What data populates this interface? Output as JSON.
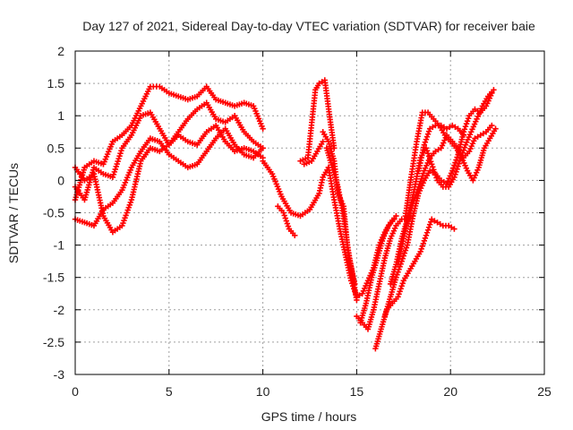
{
  "chart_data": {
    "type": "scatter",
    "title": "Day 127 of 2021, Sidereal Day-to-day VTEC variation (SDTVAR) for receiver baie",
    "xlabel": "GPS time / hours",
    "ylabel": "SDTVAR / TECUs",
    "xlim": [
      0,
      25
    ],
    "ylim": [
      -3,
      2
    ],
    "xticks": [
      0,
      5,
      10,
      15,
      20,
      25
    ],
    "yticks": [
      -3,
      -2.5,
      -2,
      -1.5,
      -1,
      -0.5,
      0,
      0.5,
      1,
      1.5,
      2
    ],
    "xtick_labels": [
      "0",
      "5",
      "10",
      "15",
      "20",
      "25"
    ],
    "ytick_labels": [
      "-3",
      "-2.5",
      "-2",
      "-1.5",
      "-1",
      "-0.5",
      "0",
      "0.5",
      "1",
      "1.5",
      "2"
    ],
    "grid": true,
    "marker": "plus",
    "color": "#ff0000",
    "series": [
      {
        "x": [
          0.0,
          0.5,
          1.0,
          1.5,
          2.0,
          2.5,
          3.0,
          3.5,
          4.0,
          4.5,
          5.0,
          5.5,
          6.0,
          6.5,
          7.0,
          7.5,
          8.0,
          8.5,
          9.0,
          9.5,
          10.0
        ],
        "y": [
          -0.3,
          0.2,
          0.3,
          0.25,
          0.6,
          0.7,
          0.85,
          1.15,
          1.45,
          1.45,
          1.35,
          1.3,
          1.25,
          1.3,
          1.45,
          1.25,
          1.2,
          1.15,
          1.2,
          1.15,
          0.8
        ]
      },
      {
        "x": [
          0.0,
          0.5,
          1.0,
          1.5,
          2.0,
          2.5,
          3.0,
          3.5,
          4.0,
          4.5,
          5.0,
          5.5,
          6.0,
          6.5,
          7.0,
          7.5,
          8.0,
          8.5,
          9.0,
          9.5,
          10.0
        ],
        "y": [
          -0.1,
          -0.3,
          0.2,
          0.1,
          0.05,
          0.5,
          0.7,
          1.0,
          1.05,
          0.8,
          0.55,
          0.75,
          0.95,
          1.1,
          1.2,
          0.95,
          0.9,
          1.0,
          0.75,
          0.6,
          0.5
        ]
      },
      {
        "x": [
          0.0,
          0.5,
          1.0,
          1.5,
          2.0,
          2.5,
          3.0,
          3.5,
          4.0,
          4.5,
          5.0,
          5.5,
          6.0,
          6.5,
          7.0,
          7.5,
          8.0,
          8.5,
          9.0,
          9.5,
          10.0
        ],
        "y": [
          0.2,
          0.0,
          0.1,
          -0.55,
          -0.8,
          -0.7,
          -0.3,
          0.3,
          0.5,
          0.45,
          0.55,
          0.7,
          0.6,
          0.55,
          0.75,
          0.85,
          0.6,
          0.45,
          0.5,
          0.45,
          0.35
        ]
      },
      {
        "x": [
          0.0,
          0.5,
          1.0,
          1.5,
          2.0,
          2.5,
          3.0,
          3.5,
          4.0,
          4.5,
          5.0,
          5.5,
          6.0,
          6.5,
          7.0,
          7.5,
          8.0,
          8.5,
          9.0,
          9.5,
          10.0
        ],
        "y": [
          -0.6,
          -0.65,
          -0.7,
          -0.45,
          -0.35,
          -0.15,
          0.2,
          0.45,
          0.65,
          0.6,
          0.4,
          0.3,
          0.2,
          0.25,
          0.45,
          0.65,
          0.8,
          0.55,
          0.4,
          0.35,
          0.5
        ]
      },
      {
        "x": [
          10.0,
          10.5,
          11.0,
          11.5,
          12.0,
          12.5,
          13.0,
          13.2,
          13.5
        ],
        "y": [
          0.3,
          0.1,
          -0.25,
          -0.5,
          -0.55,
          -0.45,
          -0.2,
          0.05,
          0.2
        ]
      },
      {
        "x": [
          10.8,
          11.1,
          11.4,
          11.7
        ],
        "y": [
          -0.4,
          -0.5,
          -0.75,
          -0.85
        ]
      },
      {
        "x": [
          12.0,
          12.4,
          12.8,
          13.0,
          13.3,
          13.6,
          13.8
        ],
        "y": [
          0.3,
          0.35,
          1.4,
          1.5,
          1.55,
          0.9,
          0.5
        ]
      },
      {
        "x": [
          12.2,
          12.6,
          12.9,
          13.2
        ],
        "y": [
          0.25,
          0.3,
          0.45,
          0.6
        ]
      },
      {
        "x": [
          13.2,
          13.5,
          13.8,
          14.0,
          14.3,
          14.5,
          14.8,
          15.0
        ],
        "y": [
          0.75,
          0.6,
          0.3,
          -0.2,
          -0.4,
          -1.0,
          -1.5,
          -1.85
        ]
      },
      {
        "x": [
          13.4,
          13.7,
          14.0,
          14.3,
          14.6,
          14.9
        ],
        "y": [
          0.5,
          0.2,
          -0.1,
          -0.55,
          -1.2,
          -1.6
        ]
      },
      {
        "x": [
          13.5,
          13.8,
          14.1,
          14.4,
          14.7,
          15.0,
          15.3,
          15.6,
          15.9,
          16.2,
          16.5,
          16.8,
          17.1
        ],
        "y": [
          0.2,
          -0.3,
          -0.75,
          -1.15,
          -1.55,
          -1.8,
          -1.75,
          -1.55,
          -1.35,
          -1.0,
          -0.8,
          -0.65,
          -0.55
        ]
      },
      {
        "x": [
          15.0,
          15.3,
          15.6,
          15.9,
          16.2,
          16.5,
          16.8,
          17.1,
          17.4,
          17.7,
          18.0
        ],
        "y": [
          -2.1,
          -2.2,
          -2.3,
          -2.0,
          -1.6,
          -1.2,
          -0.9,
          -0.7,
          -0.6,
          -0.6,
          -0.55
        ]
      },
      {
        "x": [
          15.2,
          15.5,
          15.8,
          16.1,
          16.4,
          16.7,
          17.0
        ],
        "y": [
          -2.2,
          -1.9,
          -1.5,
          -1.2,
          -0.9,
          -0.7,
          -0.6
        ]
      },
      {
        "x": [
          16.0,
          16.3,
          16.6,
          16.9,
          17.2,
          17.5,
          17.8,
          18.1,
          18.4,
          18.7,
          19.0,
          19.3,
          19.6,
          19.9,
          20.2
        ],
        "y": [
          -2.6,
          -2.3,
          -2.0,
          -1.9,
          -1.8,
          -1.55,
          -1.4,
          -1.25,
          -1.1,
          -0.85,
          -0.6,
          -0.65,
          -0.7,
          -0.7,
          -0.75
        ]
      },
      {
        "x": [
          16.5,
          16.8,
          17.1,
          17.4,
          17.7,
          18.0,
          18.3,
          18.6,
          18.9,
          19.2,
          19.5,
          19.8,
          20.1,
          20.4,
          20.7,
          21.0,
          21.3,
          21.6,
          21.9,
          22.2
        ],
        "y": [
          -2.1,
          -1.8,
          -1.5,
          -1.25,
          -1.0,
          -0.55,
          -0.2,
          0.0,
          0.15,
          0.1,
          0.0,
          -0.05,
          0.15,
          0.4,
          0.75,
          1.0,
          1.1,
          1.05,
          1.15,
          1.35
        ]
      },
      {
        "x": [
          16.8,
          17.1,
          17.4,
          17.7,
          18.0,
          18.3,
          18.6,
          18.9,
          19.2,
          19.5,
          19.8,
          20.1,
          20.4,
          20.7,
          21.0,
          21.3,
          21.6,
          21.9,
          22.2
        ],
        "y": [
          -1.6,
          -1.3,
          -0.9,
          -0.6,
          -0.35,
          -0.1,
          0.15,
          0.35,
          0.45,
          0.5,
          0.7,
          0.6,
          0.5,
          0.35,
          0.45,
          0.65,
          0.7,
          0.75,
          0.85
        ]
      },
      {
        "x": [
          17.2,
          17.5,
          17.8,
          18.1,
          18.4,
          18.7,
          19.0,
          19.3,
          19.6,
          19.9,
          20.2,
          20.5,
          20.8,
          21.1,
          21.4,
          21.7,
          22.0,
          22.3
        ],
        "y": [
          -1.3,
          -0.9,
          -0.5,
          -0.1,
          0.35,
          0.5,
          0.25,
          0.0,
          -0.1,
          -0.1,
          0.05,
          0.3,
          0.55,
          0.75,
          0.95,
          1.15,
          1.3,
          1.4
        ]
      },
      {
        "x": [
          17.6,
          17.9,
          18.2,
          18.5,
          18.8,
          19.1,
          19.4,
          19.7,
          20.0,
          20.3,
          20.6,
          20.9,
          21.2,
          21.5,
          21.8,
          22.1,
          22.4
        ],
        "y": [
          -0.55,
          0.05,
          0.6,
          1.05,
          1.05,
          0.95,
          0.85,
          0.7,
          0.6,
          0.5,
          0.35,
          0.15,
          0.0,
          0.2,
          0.5,
          0.65,
          0.8
        ]
      },
      {
        "x": [
          18.3,
          18.6,
          18.9,
          19.2,
          19.5,
          19.8,
          20.1,
          20.4,
          20.7
        ],
        "y": [
          0.15,
          0.55,
          0.8,
          0.85,
          0.85,
          0.8,
          0.85,
          0.8,
          0.7
        ]
      }
    ]
  }
}
